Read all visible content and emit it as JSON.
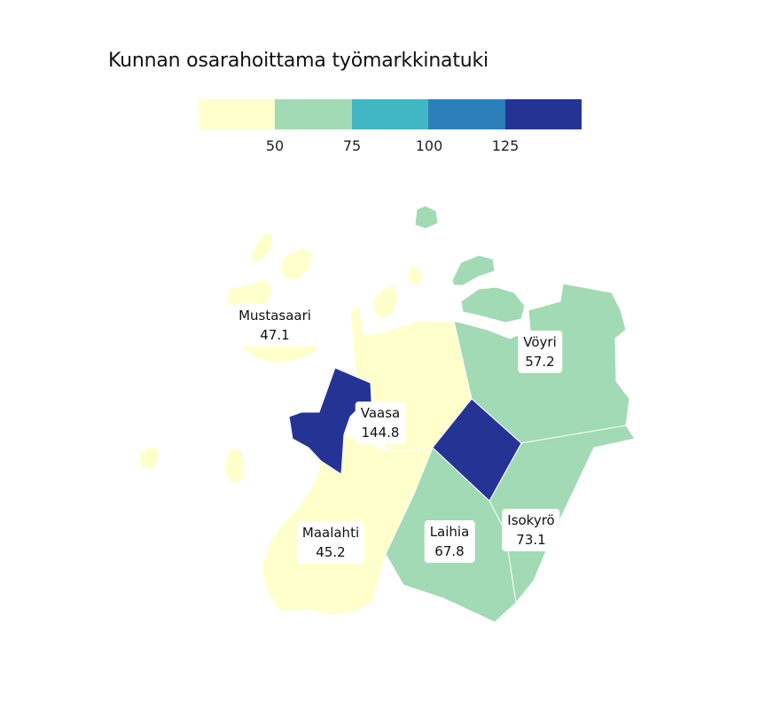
{
  "title": "Kunnan osarahoittama työmarkkinatuki",
  "colors": {
    "bin1": "#ffffcc",
    "bin2": "#a1dab4",
    "bin3": "#41b6c4",
    "bin4": "#2c7fb8",
    "bin5": "#253494"
  },
  "legend": {
    "ticks": [
      "50",
      "75",
      "100",
      "125"
    ]
  },
  "regions": [
    {
      "name": "Mustasaari",
      "value": "47.1"
    },
    {
      "name": "Vöyri",
      "value": "57.2"
    },
    {
      "name": "Vaasa",
      "value": "144.8"
    },
    {
      "name": "Maalahti",
      "value": "45.2"
    },
    {
      "name": "Laihia",
      "value": "67.8"
    },
    {
      "name": "Isokyrö",
      "value": "73.1"
    }
  ],
  "chart_data": {
    "type": "choropleth",
    "title": "Kunnan osarahoittama työmarkkinatuki",
    "legend_thresholds": [
      50,
      75,
      100,
      125
    ],
    "regions": [
      {
        "name": "Mustasaari",
        "value": 47.1
      },
      {
        "name": "Vöyri",
        "value": 57.2
      },
      {
        "name": "Vaasa",
        "value": 144.8
      },
      {
        "name": "Maalahti",
        "value": 45.2
      },
      {
        "name": "Laihia",
        "value": 67.8
      },
      {
        "name": "Isokyrö",
        "value": 73.1
      }
    ]
  }
}
